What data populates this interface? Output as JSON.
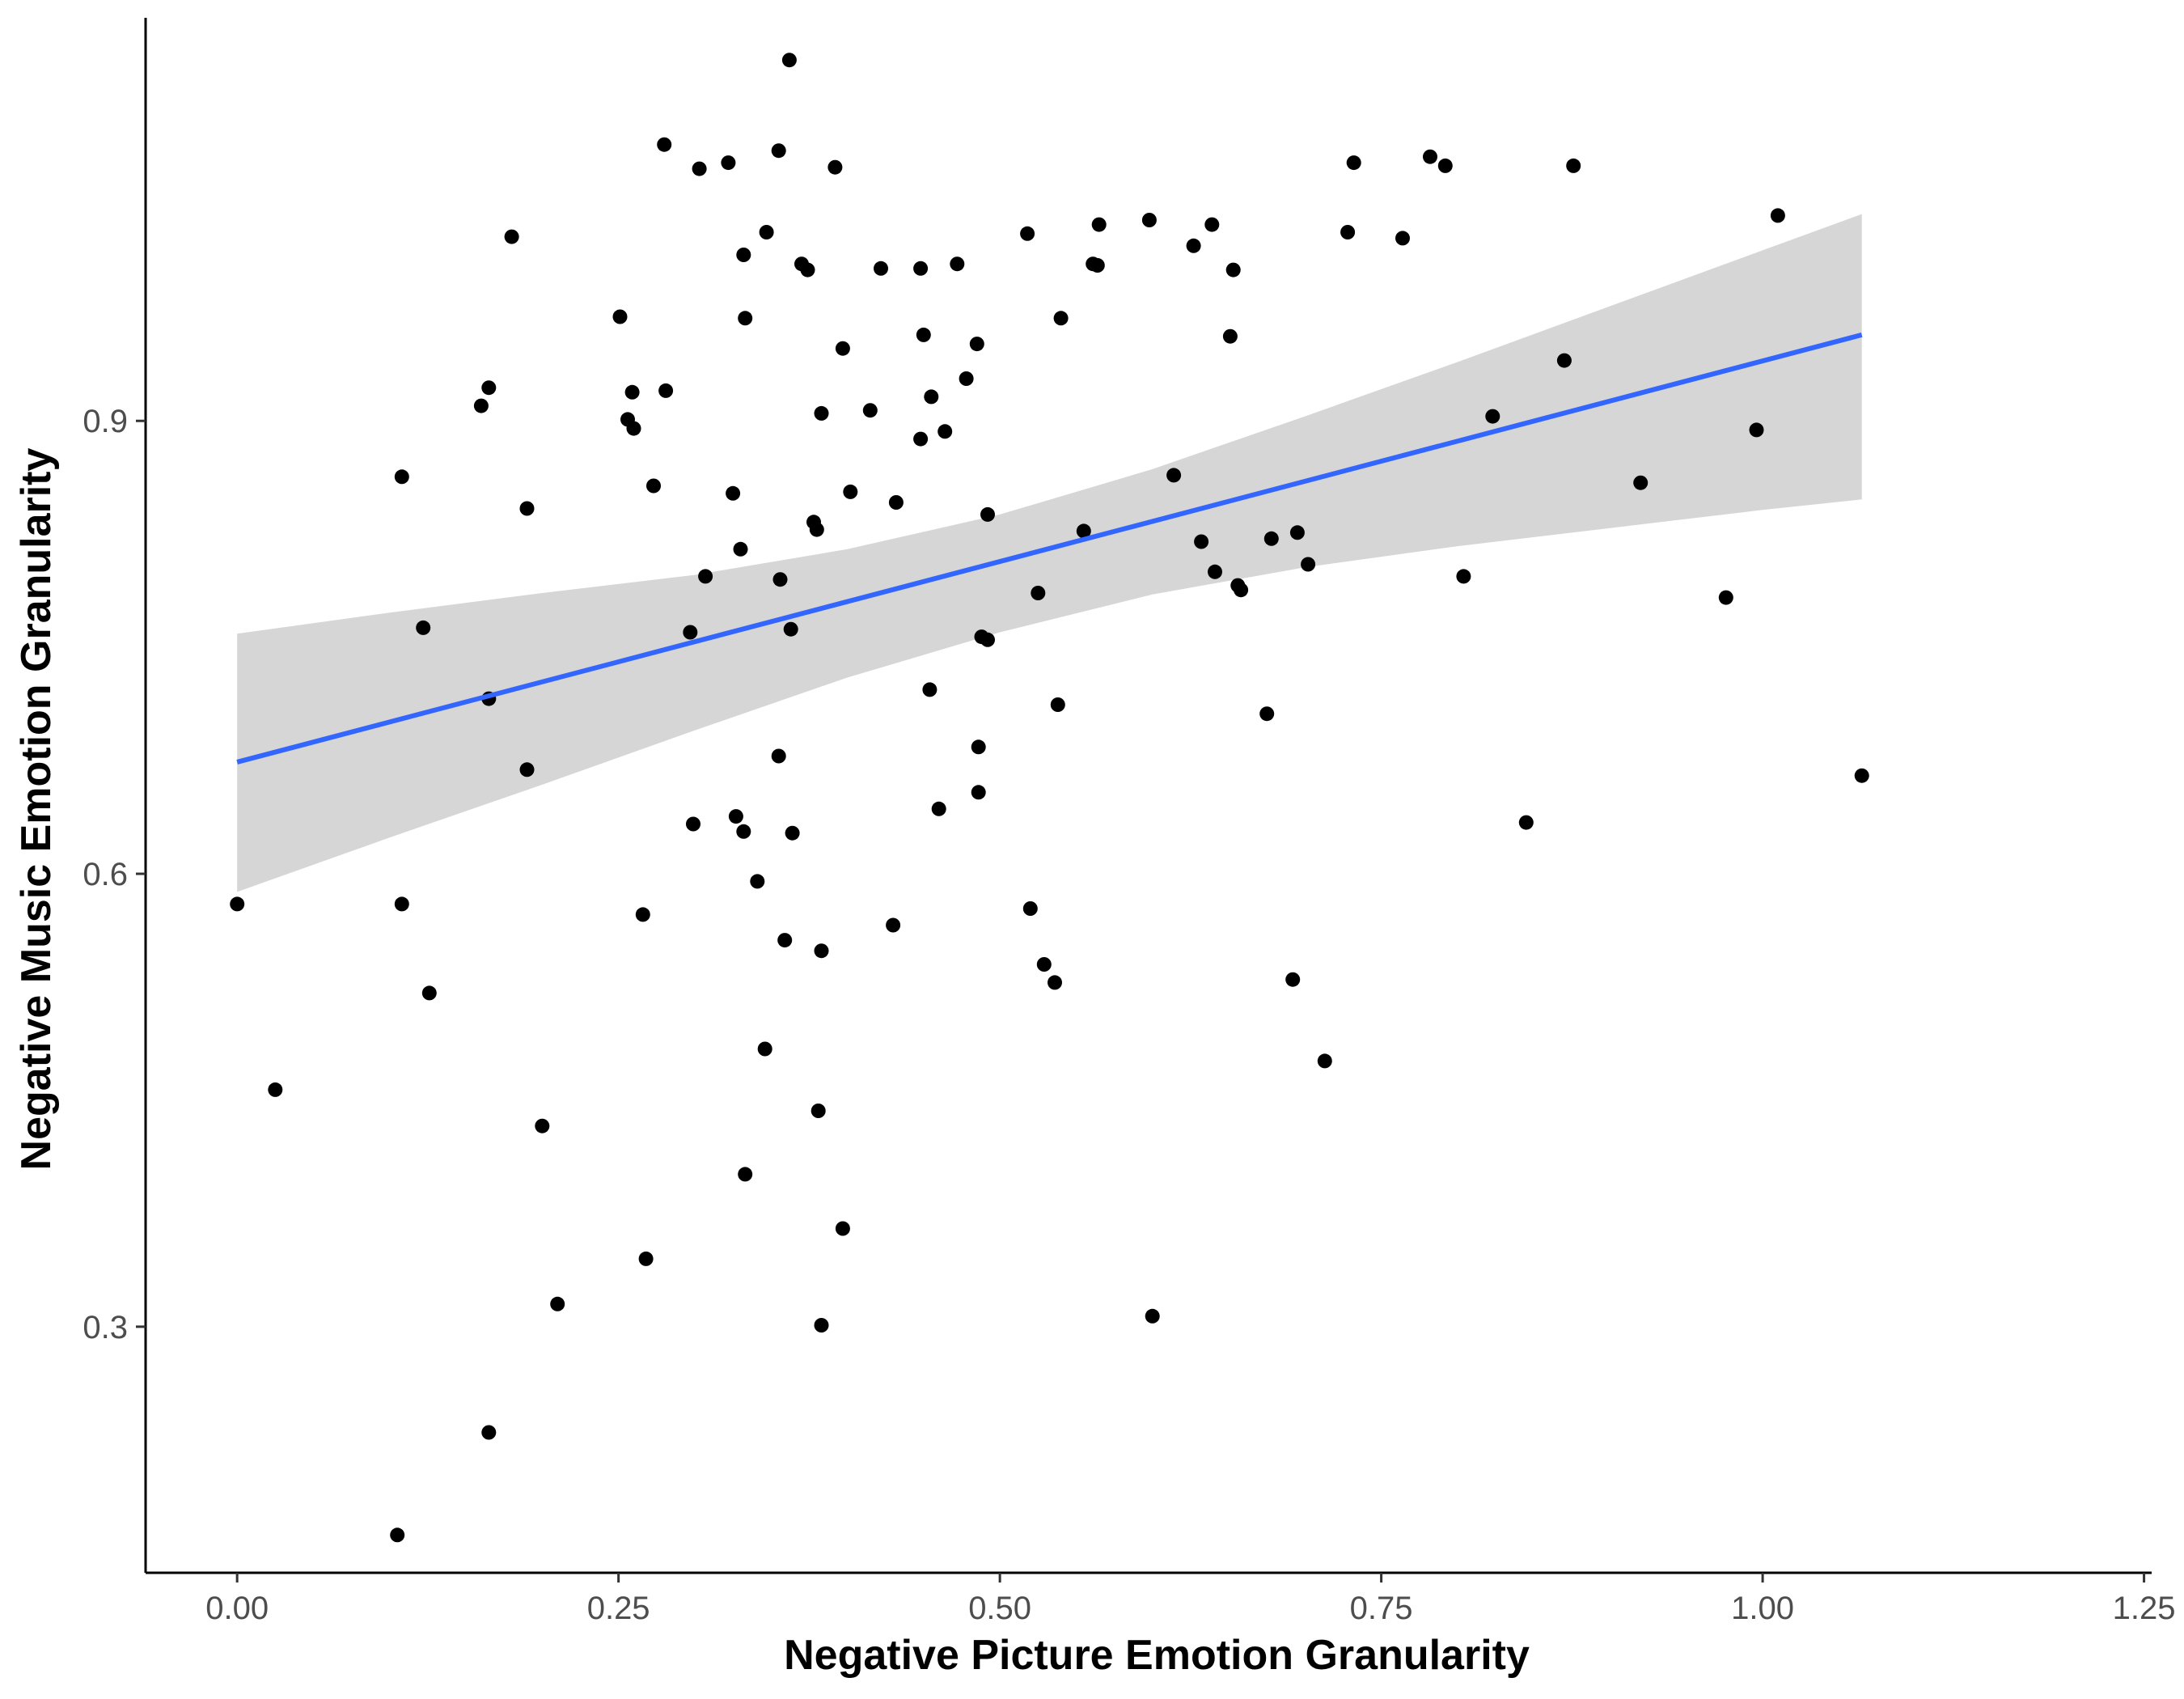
{
  "chart_data": {
    "type": "scatter",
    "xlabel": "Negative Picture Emotion Granularity",
    "ylabel": "Negative Music Emotion Granularity",
    "xlim": [
      -0.06,
      1.255
    ],
    "ylim": [
      0.137,
      1.167
    ],
    "x_ticks": [
      0,
      0.25,
      0.5,
      0.75,
      1.0,
      1.25
    ],
    "x_tick_labels": [
      "0.00",
      "0.25",
      "0.50",
      "0.75",
      "1.00",
      "1.25"
    ],
    "y_ticks": [
      0.3,
      0.6,
      0.9
    ],
    "y_tick_labels": [
      "0.3",
      "0.6",
      "0.9"
    ],
    "grid": false,
    "colors": {
      "points": "#000000",
      "fit_line": "#3366ff",
      "ribbon": "#d6d6d6",
      "axis": "#000000",
      "tick_text": "#4d4d4d"
    },
    "points": [
      [
        0.0,
        0.58
      ],
      [
        0.025,
        0.457
      ],
      [
        0.105,
        0.162
      ],
      [
        0.108,
        0.863
      ],
      [
        0.108,
        0.58
      ],
      [
        0.122,
        0.763
      ],
      [
        0.126,
        0.521
      ],
      [
        0.16,
        0.91
      ],
      [
        0.165,
        0.922
      ],
      [
        0.165,
        0.716
      ],
      [
        0.165,
        0.23
      ],
      [
        0.18,
        1.022
      ],
      [
        0.19,
        0.842
      ],
      [
        0.19,
        0.669
      ],
      [
        0.2,
        0.433
      ],
      [
        0.21,
        0.315
      ],
      [
        0.251,
        0.969
      ],
      [
        0.256,
        0.901
      ],
      [
        0.259,
        0.919
      ],
      [
        0.26,
        0.895
      ],
      [
        0.266,
        0.573
      ],
      [
        0.268,
        0.345
      ],
      [
        0.273,
        0.857
      ],
      [
        0.28,
        1.083
      ],
      [
        0.281,
        0.92
      ],
      [
        0.297,
        0.76
      ],
      [
        0.299,
        0.633
      ],
      [
        0.303,
        1.067
      ],
      [
        0.307,
        0.797
      ],
      [
        0.322,
        1.071
      ],
      [
        0.325,
        0.852
      ],
      [
        0.327,
        0.638
      ],
      [
        0.33,
        0.815
      ],
      [
        0.332,
        1.01
      ],
      [
        0.332,
        0.628
      ],
      [
        0.333,
        0.968
      ],
      [
        0.333,
        0.401
      ],
      [
        0.341,
        0.595
      ],
      [
        0.346,
        0.484
      ],
      [
        0.347,
        1.025
      ],
      [
        0.355,
        1.079
      ],
      [
        0.355,
        0.678
      ],
      [
        0.356,
        0.795
      ],
      [
        0.359,
        0.556
      ],
      [
        0.362,
        1.139
      ],
      [
        0.363,
        0.762
      ],
      [
        0.364,
        0.627
      ],
      [
        0.37,
        1.004
      ],
      [
        0.374,
        1.0
      ],
      [
        0.378,
        0.833
      ],
      [
        0.38,
        0.828
      ],
      [
        0.381,
        0.443
      ],
      [
        0.383,
        0.905
      ],
      [
        0.383,
        0.549
      ],
      [
        0.383,
        0.301
      ],
      [
        0.392,
        1.068
      ],
      [
        0.397,
        0.948
      ],
      [
        0.397,
        0.365
      ],
      [
        0.402,
        0.853
      ],
      [
        0.415,
        0.907
      ],
      [
        0.422,
        1.001
      ],
      [
        0.43,
        0.566
      ],
      [
        0.432,
        0.846
      ],
      [
        0.448,
        1.001
      ],
      [
        0.448,
        0.888
      ],
      [
        0.45,
        0.957
      ],
      [
        0.454,
        0.722
      ],
      [
        0.455,
        0.916
      ],
      [
        0.46,
        0.643
      ],
      [
        0.464,
        0.893
      ],
      [
        0.472,
        1.004
      ],
      [
        0.478,
        0.928
      ],
      [
        0.485,
        0.951
      ],
      [
        0.486,
        0.684
      ],
      [
        0.486,
        0.654
      ],
      [
        0.488,
        0.757
      ],
      [
        0.492,
        0.838
      ],
      [
        0.492,
        0.755
      ],
      [
        0.518,
        1.024
      ],
      [
        0.52,
        0.577
      ],
      [
        0.525,
        0.786
      ],
      [
        0.529,
        0.54
      ],
      [
        0.536,
        0.528
      ],
      [
        0.538,
        0.712
      ],
      [
        0.54,
        0.968
      ],
      [
        0.555,
        0.827
      ],
      [
        0.561,
        1.004
      ],
      [
        0.564,
        1.003
      ],
      [
        0.565,
        1.03
      ],
      [
        0.598,
        1.033
      ],
      [
        0.6,
        0.307
      ],
      [
        0.614,
        0.864
      ],
      [
        0.627,
        1.016
      ],
      [
        0.632,
        0.82
      ],
      [
        0.639,
        1.03
      ],
      [
        0.641,
        0.8
      ],
      [
        0.651,
        0.956
      ],
      [
        0.653,
        1.0
      ],
      [
        0.656,
        0.791
      ],
      [
        0.658,
        0.788
      ],
      [
        0.675,
        0.706
      ],
      [
        0.678,
        0.822
      ],
      [
        0.692,
        0.53
      ],
      [
        0.695,
        0.826
      ],
      [
        0.702,
        0.805
      ],
      [
        0.713,
        0.476
      ],
      [
        0.728,
        1.025
      ],
      [
        0.732,
        1.071
      ],
      [
        0.764,
        1.021
      ],
      [
        0.782,
        1.075
      ],
      [
        0.792,
        1.069
      ],
      [
        0.804,
        0.797
      ],
      [
        0.823,
        0.903
      ],
      [
        0.845,
        0.634
      ],
      [
        0.87,
        0.94
      ],
      [
        0.876,
        1.069
      ],
      [
        0.92,
        0.859
      ],
      [
        0.976,
        0.783
      ],
      [
        0.996,
        0.894
      ],
      [
        1.01,
        1.036
      ],
      [
        1.065,
        0.665
      ]
    ],
    "fit_line": [
      [
        0.0,
        0.674
      ],
      [
        1.065,
        0.957
      ]
    ],
    "ribbon": {
      "x": [
        0.0,
        0.1,
        0.2,
        0.3,
        0.4,
        0.5,
        0.6,
        0.7,
        0.8,
        0.9,
        1.0,
        1.065
      ],
      "upper": [
        0.759,
        0.773,
        0.786,
        0.798,
        0.815,
        0.838,
        0.868,
        0.903,
        0.939,
        0.976,
        1.013,
        1.037
      ],
      "lower": [
        0.588,
        0.624,
        0.659,
        0.695,
        0.73,
        0.76,
        0.785,
        0.803,
        0.817,
        0.829,
        0.841,
        0.848
      ]
    }
  }
}
